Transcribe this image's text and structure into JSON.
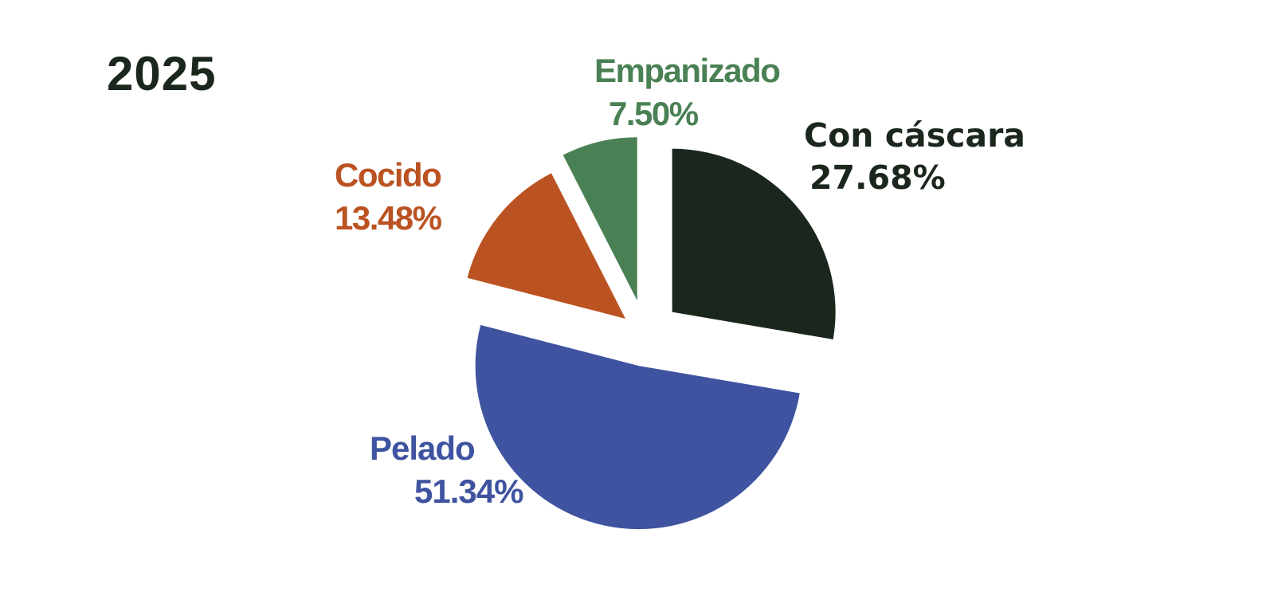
{
  "chart_data": {
    "type": "pie",
    "title": "2025",
    "slices": [
      {
        "label": "Con cáscara",
        "value": 27.68,
        "display": "27.68%",
        "color": "#1b271d"
      },
      {
        "label": "Pelado",
        "value": 51.34,
        "display": "51.34%",
        "color": "#3f53a0"
      },
      {
        "label": "Cocido",
        "value": 13.48,
        "display": "13.48%",
        "color": "#bb5221"
      },
      {
        "label": "Empanizado",
        "value": 7.5,
        "display": "7.50%",
        "color": "#4a8154"
      }
    ],
    "exploded": true,
    "legend": "none",
    "labels_outside": true
  }
}
